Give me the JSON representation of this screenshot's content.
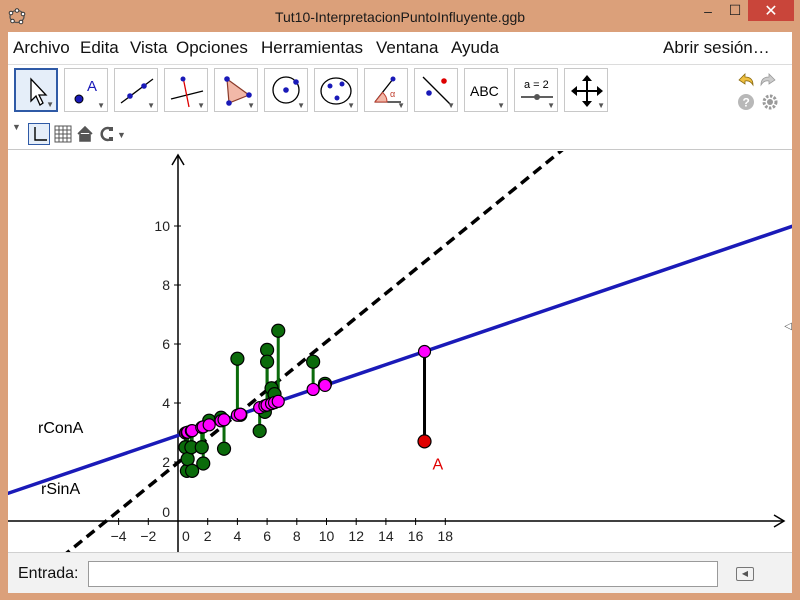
{
  "window": {
    "title": "Tut10-InterpretacionPuntoInfluyente.ggb",
    "minimize": "–",
    "maximize": "☐",
    "close": "✕"
  },
  "menubar": {
    "items": [
      "Archivo",
      "Edita",
      "Vista",
      "Opciones",
      "Herramientas",
      "Ventana",
      "Ayuda"
    ],
    "login": "Abrir sesión…"
  },
  "toolbar": {
    "tools": [
      {
        "name": "move-tool",
        "icon": "arrow-cursor-icon"
      },
      {
        "name": "point-tool",
        "icon": "point-A-icon"
      },
      {
        "name": "line-tool",
        "icon": "line-through-points-icon"
      },
      {
        "name": "perpendicular-tool",
        "icon": "perpendicular-line-icon"
      },
      {
        "name": "polygon-tool",
        "icon": "polygon-icon"
      },
      {
        "name": "circle-tool",
        "icon": "circle-center-icon"
      },
      {
        "name": "conic-tool",
        "icon": "ellipse-icon"
      },
      {
        "name": "angle-tool",
        "icon": "angle-icon"
      },
      {
        "name": "reflect-tool",
        "icon": "reflect-icon"
      },
      {
        "name": "text-tool",
        "icon": "text-icon",
        "label": "ABC"
      },
      {
        "name": "slider-tool",
        "icon": "slider-icon",
        "label": "a = 2"
      },
      {
        "name": "move-graphics-tool",
        "icon": "move-view-icon"
      }
    ],
    "undo_icon": "undo-icon",
    "redo_icon": "redo-icon",
    "help_icon": "help-icon",
    "settings_icon": "gear-icon"
  },
  "style_bar": {
    "axes_icon": "axes-icon",
    "grid_icon": "grid-icon",
    "home_icon": "home-icon",
    "point_capture_icon": "point-capture-icon"
  },
  "graphics": {
    "x_ticks": [
      "−4",
      "−2",
      "0",
      "2",
      "4",
      "6",
      "8",
      "10",
      "12",
      "14",
      "16",
      "18"
    ],
    "y_ticks": [
      "2",
      "4",
      "6",
      "8",
      "10"
    ],
    "line_labels": {
      "with_A": "rConA",
      "without_A": "rSinA"
    },
    "point_label": "A",
    "colors": {
      "line_with_A": "#1a1ab8",
      "line_without_A": "#000000",
      "data_points": "#0b6b0b",
      "fitted_points": "#ff00ff",
      "point_A": "#e00000"
    },
    "point_A": {
      "x": 16.6,
      "y": 2.7
    },
    "line_with_A": {
      "slope": 0.1714,
      "intercept": 2.9
    },
    "line_without_A": {
      "slope": 0.4096,
      "intercept": 1.98
    },
    "data_points": [
      {
        "x": 0.5,
        "y": 2.5
      },
      {
        "x": 0.6,
        "y": 1.7
      },
      {
        "x": 0.65,
        "y": 2.1
      },
      {
        "x": 0.9,
        "y": 2.5
      },
      {
        "x": 0.95,
        "y": 1.7
      },
      {
        "x": 1.6,
        "y": 2.5
      },
      {
        "x": 1.7,
        "y": 1.95
      },
      {
        "x": 2.1,
        "y": 3.4
      },
      {
        "x": 2.9,
        "y": 3.5
      },
      {
        "x": 3.1,
        "y": 2.45
      },
      {
        "x": 4.0,
        "y": 5.5
      },
      {
        "x": 4.2,
        "y": 3.6
      },
      {
        "x": 5.5,
        "y": 3.05
      },
      {
        "x": 5.85,
        "y": 3.7
      },
      {
        "x": 6.0,
        "y": 5.8
      },
      {
        "x": 6.0,
        "y": 5.4
      },
      {
        "x": 6.3,
        "y": 4.5
      },
      {
        "x": 6.5,
        "y": 4.3
      },
      {
        "x": 6.75,
        "y": 6.45
      },
      {
        "x": 9.1,
        "y": 5.4
      },
      {
        "x": 9.9,
        "y": 4.65
      }
    ]
  },
  "input_bar": {
    "label": "Entrada:",
    "value": "",
    "keyboard_icon": "keyboard-toggle-icon"
  }
}
